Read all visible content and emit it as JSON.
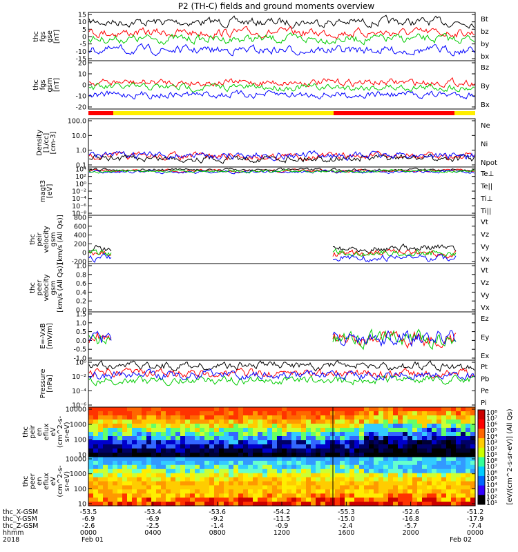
{
  "title": "P2 (TH-C) fields and ground moments overview",
  "colors": {
    "black": "#000000",
    "red": "#ff0000",
    "green": "#00cc00",
    "blue": "#0000ff",
    "yellow": "#ffee00"
  },
  "chart_data": [
    {
      "type": "line",
      "id": "fgs_gse",
      "ylabel": [
        "thc",
        "fgs",
        "gse",
        "[nT]"
      ],
      "yticks": [
        "15",
        "10",
        "5",
        "0",
        "-5",
        "-10",
        "-15"
      ],
      "ylim": [
        -15,
        15
      ],
      "series": [
        {
          "name": "Bt",
          "color": "#000000",
          "level": 9
        },
        {
          "name": "bz",
          "color": "#ff0000",
          "level": 2
        },
        {
          "name": "by",
          "color": "#00cc00",
          "level": -2
        },
        {
          "name": "bx",
          "color": "#0000ff",
          "level": -8
        }
      ]
    },
    {
      "type": "line",
      "id": "fgs_gsm",
      "ylabel": [
        "thc",
        "fgs",
        "gsm",
        "[nT]"
      ],
      "yticks": [
        "20",
        "10",
        "0",
        "-10",
        "-20"
      ],
      "ylim": [
        -20,
        20
      ],
      "series": [
        {
          "name": "Bz",
          "color": "#ff0000",
          "level": 2
        },
        {
          "name": "By",
          "color": "#00cc00",
          "level": -2
        },
        {
          "name": "Bx",
          "color": "#0000ff",
          "level": -8
        }
      ]
    },
    {
      "type": "line",
      "id": "density",
      "ylabel": [
        "Density",
        "[1/cc]",
        "[cm-3]"
      ],
      "yticks": [
        "100.0",
        "10.0",
        "1.0",
        "0.1"
      ],
      "log": true,
      "series": [
        {
          "name": "Ne",
          "color": "#ff0000",
          "level": 0.3
        },
        {
          "name": "Ni",
          "color": "#000000",
          "level": 0.3
        },
        {
          "name": "Npot",
          "color": "#0000ff",
          "level": 0.4
        }
      ]
    },
    {
      "type": "line",
      "id": "temp",
      "ylabel": [
        "magt3",
        "[eV]"
      ],
      "yticks": [
        "10⁴",
        "10²",
        "10⁰",
        "10⁻²",
        "10⁻⁴",
        "10⁻⁶",
        "10⁻⁸"
      ],
      "log": true,
      "series": [
        {
          "name": "Te⊥",
          "color": "#ff0000",
          "level": 3
        },
        {
          "name": "Te||",
          "color": "#000000",
          "level": 3
        },
        {
          "name": "Ti⊥",
          "color": "#0000ff",
          "level": 3.2
        },
        {
          "name": "Ti||",
          "color": "#00cc00",
          "level": 3.2
        }
      ]
    },
    {
      "type": "line",
      "id": "peir_vel",
      "ylabel": [
        "thc",
        "peir",
        "velocity",
        "gsm",
        "[km/s (All Qs)]"
      ],
      "yticks": [
        "800",
        "600",
        "400",
        "200",
        "0",
        "-200"
      ],
      "ylim": [
        -200,
        800
      ],
      "series": [
        {
          "name": "Vt",
          "color": "#000000",
          "level": 100
        },
        {
          "name": "Vz",
          "color": "#ff0000",
          "level": 20
        },
        {
          "name": "Vy",
          "color": "#00cc00",
          "level": 30
        },
        {
          "name": "Vx",
          "color": "#0000ff",
          "level": -50
        }
      ]
    },
    {
      "type": "line",
      "id": "peer_vel",
      "ylabel": [
        "thc",
        "peer",
        "velocity",
        "gsm",
        "[km/s (All Qs)]"
      ],
      "yticks": [
        "1.0",
        "0.8",
        "0.6",
        "0.4",
        "0.2",
        "0.0"
      ],
      "ylim": [
        0,
        1
      ],
      "series": [
        {
          "name": "Vt",
          "color": "#000000"
        },
        {
          "name": "Vz",
          "color": "#ff0000"
        },
        {
          "name": "Vy",
          "color": "#00cc00"
        },
        {
          "name": "Vx",
          "color": "#0000ff"
        }
      ]
    },
    {
      "type": "line",
      "id": "efield",
      "ylabel": [
        "E=-VxB",
        "[mV/m]"
      ],
      "yticks": [
        "1.5",
        "1.0",
        "0.5",
        "0.0",
        "-0.5",
        "-1.0"
      ],
      "ylim": [
        -1,
        1.5
      ],
      "series": [
        {
          "name": "Ez",
          "color": "#ff0000",
          "level": 0
        },
        {
          "name": "Ey",
          "color": "#00cc00",
          "level": 0
        },
        {
          "name": "Ex",
          "color": "#0000ff",
          "level": 0
        }
      ]
    },
    {
      "type": "line",
      "id": "pressure",
      "ylabel": [
        "Pressure",
        "[nPa]"
      ],
      "yticks": [
        "10⁰",
        "10⁻²",
        "10⁻⁴",
        "10⁻⁶"
      ],
      "log": true,
      "series": [
        {
          "name": "Pt",
          "color": "#000000",
          "level": 0.06
        },
        {
          "name": "Pb",
          "color": "#ff0000",
          "level": 0.02
        },
        {
          "name": "Pe",
          "color": "#00cc00",
          "level": 0.003
        },
        {
          "name": "Pi",
          "color": "#0000ff",
          "level": 0.01
        }
      ]
    },
    {
      "type": "heatmap",
      "id": "peir_en",
      "ylabel": [
        "thc",
        "peir",
        "en",
        "eflux",
        "eV",
        "(cm^2-s-",
        "sr-eV)"
      ],
      "yticks": [
        "10000",
        "1000",
        "100",
        "10"
      ]
    },
    {
      "type": "heatmap",
      "id": "peer_en",
      "ylabel": [
        "thc",
        "peer",
        "en",
        "eflux",
        "eV",
        "(cm^2-s-",
        "sr-eV)"
      ],
      "yticks": [
        "10000",
        "1000",
        "100",
        "10"
      ]
    }
  ],
  "colorbar": {
    "label": "[eV/(cm^2-s-sr-eV)] (All Qs)",
    "ticks": [
      "10⁸",
      "10⁷",
      "10⁶",
      "10⁵",
      "10⁴",
      "10³",
      "10²",
      "10¹",
      "10⁸",
      "10⁷",
      "10⁶",
      "10⁵",
      "10⁴",
      "10³",
      "10²",
      "10¹"
    ]
  },
  "xaxis": {
    "row_labels": [
      "thc_X-GSM",
      "thc_Y-GSM",
      "thc_Z-GSM",
      "hhmm",
      "2018"
    ],
    "x_gsm": [
      "-53.5",
      "-53.4",
      "-53.6",
      "-54.2",
      "-55.3",
      "-52.6",
      "-51.2"
    ],
    "y_gsm": [
      "-6.9",
      "-6.9",
      "-9.2",
      "-11.5",
      "-15.0",
      "-16.8",
      "-17.9"
    ],
    "z_gsm": [
      "-2.6",
      "-2.5",
      "-1.4",
      "-0.9",
      "-2.4",
      "-5.7",
      "-7.4"
    ],
    "hhmm": [
      "0000",
      "0400",
      "0800",
      "1200",
      "1600",
      "2000",
      "0000"
    ],
    "date_start": "Feb 01",
    "date_end": "Feb 02"
  }
}
